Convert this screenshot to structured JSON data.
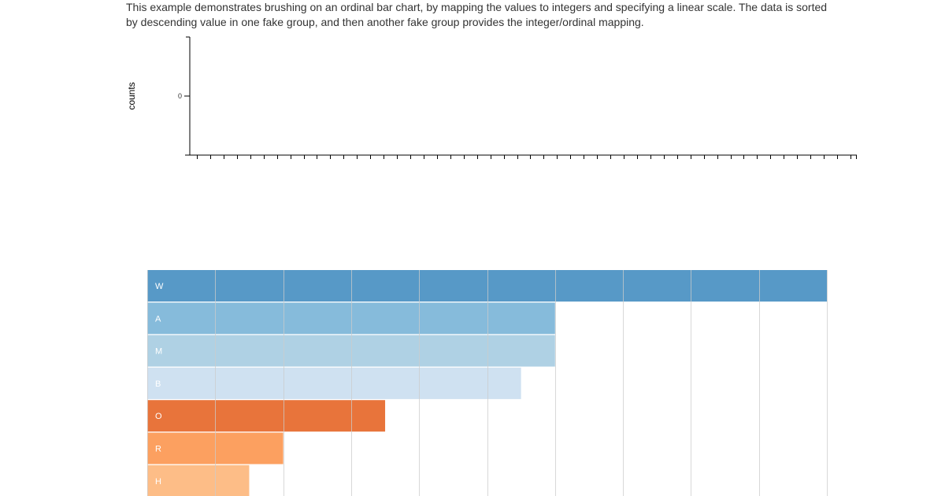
{
  "description": "This example demonstrates brushing on an ordinal bar chart, by mapping the values to integers and specifying a linear scale. The data is sorted by descending value in one fake group, and then another fake group provides the integer/ordinal mapping.",
  "chart_data": [
    {
      "type": "bar",
      "title": "",
      "xlabel": "",
      "ylabel": "counts",
      "y_tick_labels": [
        "0"
      ],
      "tick_count_x": 50,
      "categories": [],
      "values": [],
      "grid": false
    },
    {
      "type": "bar",
      "orientation": "horizontal",
      "title": "",
      "xlabel": "",
      "ylabel": "",
      "categories": [
        "W",
        "A",
        "M",
        "B",
        "O",
        "R",
        "H"
      ],
      "values": [
        10,
        6,
        6,
        5.5,
        3.5,
        2,
        1.5
      ],
      "xlim": [
        0,
        10
      ],
      "x_gridlines": [
        0,
        1,
        2,
        3,
        4,
        5,
        6,
        7,
        8,
        9,
        10
      ],
      "grid": true,
      "colors": [
        "#5799c7",
        "#86bbdb",
        "#afd1e4",
        "#cfe1f1",
        "#e8743b",
        "#fca060",
        "#fdbd87"
      ]
    }
  ]
}
